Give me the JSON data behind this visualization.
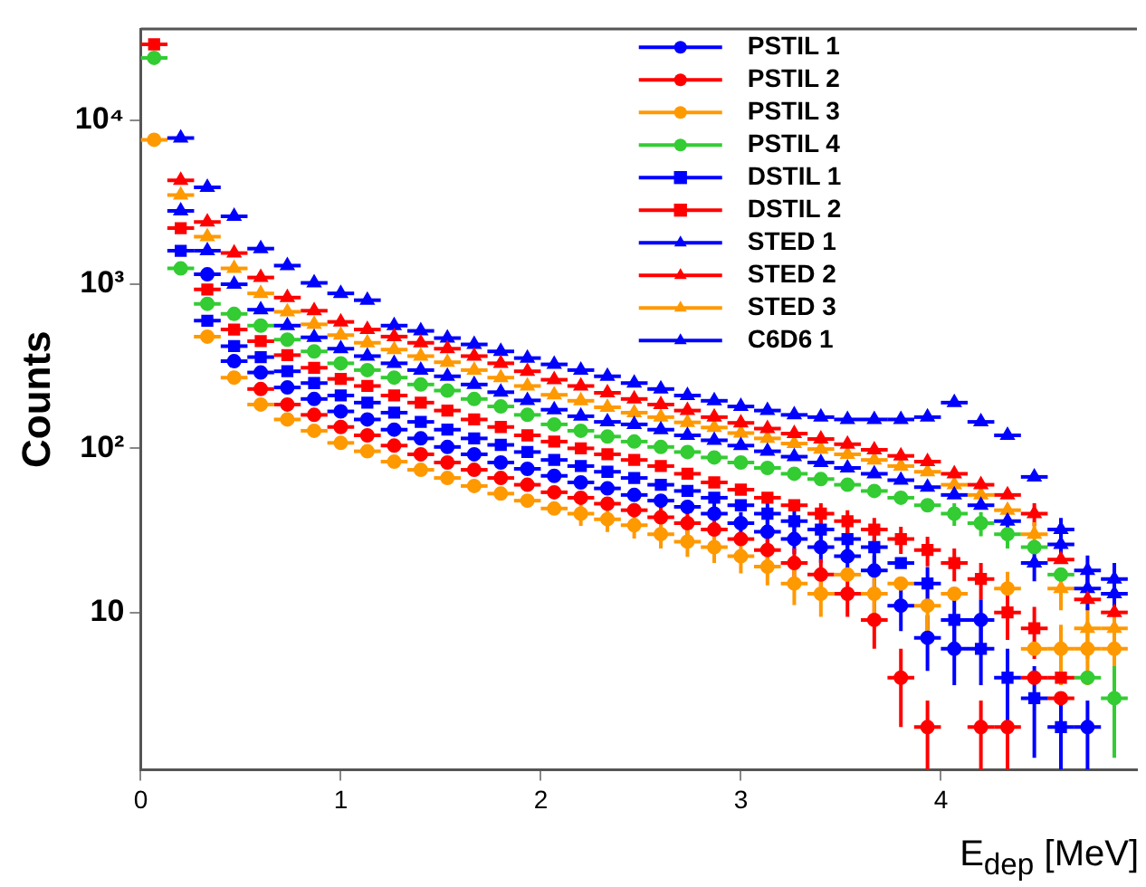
{
  "chart_data": {
    "type": "scatter",
    "xlabel": "E$_{dep}$ [MeV]",
    "ylabel": "Counts",
    "log": "y",
    "grid": false,
    "legend": "top right",
    "line_style": "solid",
    "xlim": [
      0,
      4.98
    ],
    "xticks": [
      0,
      1,
      2,
      3,
      4
    ],
    "ylim": [
      1.1,
      36000
    ],
    "yticks": [
      10,
      {
        "value": 100,
        "label": "10²"
      },
      {
        "value": 1000,
        "label": "10³"
      },
      {
        "value": 10000,
        "label": "10⁴"
      }
    ],
    "x": [
      0.067,
      0.2,
      0.333,
      0.467,
      0.6,
      0.733,
      0.867,
      1.0,
      1.133,
      1.267,
      1.4,
      1.533,
      1.667,
      1.8,
      1.933,
      2.067,
      2.2,
      2.333,
      2.467,
      2.6,
      2.733,
      2.867,
      3.0,
      3.133,
      3.267,
      3.4,
      3.533,
      3.667,
      3.8,
      3.933,
      4.067,
      4.2,
      4.333,
      4.467,
      4.6,
      4.733,
      4.867
    ],
    "series": [
      {
        "name": "PSTIL 1",
        "color": "#0000ff",
        "marker": "circle",
        "values": [
          null,
          null,
          1150,
          340,
          290,
          235,
          200,
          168,
          150,
          130,
          115,
          102,
          92,
          82,
          75,
          68,
          62,
          57,
          52,
          48,
          44,
          40,
          35,
          31,
          28,
          25,
          22,
          18,
          11,
          7,
          6,
          9,
          null,
          null,
          null,
          2,
          null
        ],
        "errors": [
          null,
          null,
          null,
          null,
          null,
          null,
          null,
          null,
          null,
          null,
          null,
          null,
          null,
          null,
          null,
          null,
          null,
          null,
          null,
          null,
          null,
          6.3,
          5.9,
          5.6,
          5.3,
          5,
          4.7,
          4.2,
          3.3,
          2.6,
          2.4,
          3,
          null,
          null,
          null,
          0.9,
          null
        ],
        "xerrors": [
          null,
          null,
          0.067,
          0.067,
          0.067,
          0.067,
          0.067,
          0.067,
          0.067,
          0.067,
          0.067,
          0.067,
          0.067,
          0.067,
          0.067,
          0.067,
          0.067,
          0.067,
          0.067,
          0.067,
          0.067,
          0.067,
          0.067,
          0.067,
          0.067,
          0.067,
          0.067,
          0.067,
          0.067,
          0.067,
          0.067,
          0.067,
          null,
          null,
          null,
          0.067,
          null
        ]
      },
      {
        "name": "PSTIL 2",
        "color": "#ff0000",
        "marker": "circle",
        "values": [
          null,
          null,
          null,
          null,
          230,
          185,
          160,
          135,
          120,
          104,
          92,
          82,
          74,
          66,
          60,
          54,
          50,
          46,
          42,
          38,
          35,
          32,
          28,
          24,
          20,
          17,
          13,
          9,
          4,
          2,
          null,
          2,
          2,
          4,
          3,
          null,
          null
        ],
        "errors": [
          null,
          null,
          null,
          null,
          null,
          null,
          null,
          null,
          null,
          null,
          null,
          null,
          null,
          null,
          null,
          null,
          null,
          null,
          null,
          6.2,
          5.9,
          5.7,
          null,
          4.9,
          4.5,
          4.1,
          3.6,
          3,
          2,
          0.9,
          null,
          0.9,
          0.9,
          null,
          null,
          null,
          null
        ],
        "xerrors": [
          null,
          null,
          null,
          null,
          0.067,
          0.067,
          0.067,
          0.067,
          0.067,
          0.067,
          0.067,
          0.067,
          0.067,
          0.067,
          0.067,
          0.067,
          0.067,
          0.067,
          0.067,
          0.067,
          0.067,
          0.067,
          0.067,
          0.067,
          0.067,
          0.067,
          0.067,
          0.067,
          0.067,
          0.067,
          null,
          0.067,
          0.067,
          0.067,
          0.067,
          null,
          null
        ]
      },
      {
        "name": "PSTIL 3",
        "color": "#ff9900",
        "marker": "circle",
        "values": [
          7600,
          null,
          480,
          270,
          185,
          150,
          128,
          108,
          96,
          83,
          74,
          66,
          59,
          53,
          48,
          43,
          40,
          37,
          34,
          30,
          27,
          25,
          22,
          19,
          15,
          13,
          17,
          13,
          15,
          11,
          13,
          null,
          14,
          6,
          6,
          6,
          6
        ],
        "errors": [
          null,
          null,
          null,
          null,
          null,
          null,
          null,
          null,
          null,
          null,
          null,
          null,
          null,
          null,
          null,
          null,
          6.3,
          6.1,
          5.8,
          5.5,
          5.2,
          5,
          4.7,
          4.4,
          3.9,
          3.6,
          null,
          3.6,
          null,
          3.3,
          null,
          null,
          3.7,
          null,
          2.4,
          2.4,
          2.4
        ],
        "xerrors": [
          0.067,
          null,
          0.067,
          0.067,
          0.067,
          0.067,
          0.067,
          0.067,
          0.067,
          0.067,
          0.067,
          0.067,
          0.067,
          0.067,
          0.067,
          0.067,
          0.067,
          0.067,
          0.067,
          0.067,
          0.067,
          0.067,
          0.067,
          0.067,
          0.067,
          0.067,
          0.067,
          0.067,
          0.067,
          0.067,
          0.067,
          null,
          0.067,
          0.067,
          0.067,
          0.067,
          0.067
        ]
      },
      {
        "name": "PSTIL 4",
        "color": "#33cc33",
        "marker": "circle",
        "values": [
          24000,
          1250,
          760,
          660,
          560,
          460,
          390,
          330,
          300,
          270,
          245,
          225,
          200,
          180,
          160,
          140,
          128,
          118,
          110,
          102,
          95,
          88,
          82,
          76,
          70,
          65,
          60,
          55,
          50,
          45,
          40,
          35,
          30,
          25,
          17,
          4,
          3
        ],
        "errors": [
          null,
          null,
          null,
          null,
          null,
          null,
          null,
          null,
          null,
          null,
          null,
          null,
          null,
          null,
          null,
          null,
          null,
          null,
          null,
          null,
          null,
          null,
          null,
          null,
          null,
          null,
          null,
          null,
          null,
          null,
          6.3,
          5.9,
          5.5,
          null,
          null,
          null,
          1.7
        ],
        "xerrors": [
          0.067,
          0.067,
          0.067,
          0.067,
          0.067,
          0.067,
          0.067,
          0.067,
          0.067,
          0.067,
          0.067,
          0.067,
          0.067,
          0.067,
          0.067,
          0.067,
          0.067,
          0.067,
          0.067,
          0.067,
          0.067,
          0.067,
          0.067,
          0.067,
          0.067,
          0.067,
          0.067,
          0.067,
          0.067,
          0.067,
          0.067,
          0.067,
          0.067,
          0.067,
          0.067,
          0.067,
          0.067
        ]
      },
      {
        "name": "DSTIL 1",
        "color": "#0000ff",
        "marker": "square",
        "values": [
          null,
          1600,
          600,
          420,
          360,
          295,
          250,
          210,
          190,
          165,
          145,
          130,
          115,
          105,
          95,
          85,
          78,
          72,
          66,
          60,
          55,
          50,
          45,
          40,
          36,
          32,
          28,
          25,
          20,
          15,
          9,
          6,
          4,
          3,
          2,
          null,
          null
        ],
        "errors": [
          null,
          null,
          null,
          null,
          null,
          null,
          null,
          null,
          null,
          null,
          null,
          null,
          null,
          null,
          null,
          null,
          null,
          null,
          null,
          null,
          null,
          null,
          null,
          6.3,
          6,
          5.7,
          5.3,
          5,
          null,
          3.9,
          3,
          2.4,
          2,
          1.7,
          0.9,
          null,
          null
        ],
        "xerrors": [
          null,
          0.067,
          0.067,
          0.067,
          0.067,
          0.067,
          0.067,
          0.067,
          0.067,
          0.067,
          0.067,
          0.067,
          0.067,
          0.067,
          0.067,
          0.067,
          0.067,
          0.067,
          0.067,
          0.067,
          0.067,
          0.067,
          0.067,
          0.067,
          0.067,
          0.067,
          0.067,
          0.067,
          0.067,
          0.067,
          0.067,
          0.067,
          0.067,
          0.067,
          0.067,
          null,
          null
        ]
      },
      {
        "name": "DSTIL 2",
        "color": "#ff0000",
        "marker": "square",
        "values": [
          29000,
          2200,
          930,
          530,
          450,
          370,
          310,
          265,
          240,
          210,
          190,
          170,
          150,
          135,
          120,
          110,
          100,
          92,
          85,
          78,
          70,
          62,
          56,
          50,
          45,
          40,
          36,
          32,
          28,
          24,
          20,
          16,
          10,
          8,
          4,
          null,
          null
        ],
        "errors": [
          null,
          null,
          null,
          null,
          null,
          null,
          null,
          null,
          null,
          null,
          null,
          null,
          null,
          null,
          null,
          null,
          null,
          null,
          null,
          null,
          null,
          null,
          null,
          null,
          null,
          6.3,
          6,
          5.7,
          5.3,
          4.9,
          4.5,
          4,
          3.2,
          2.8,
          null,
          null,
          null
        ],
        "xerrors": [
          0.067,
          0.067,
          0.067,
          0.067,
          0.067,
          0.067,
          0.067,
          0.067,
          0.067,
          0.067,
          0.067,
          0.067,
          0.067,
          0.067,
          0.067,
          0.067,
          0.067,
          0.067,
          0.067,
          0.067,
          0.067,
          0.067,
          0.067,
          0.067,
          0.067,
          0.067,
          0.067,
          0.067,
          0.067,
          0.067,
          0.067,
          0.067,
          0.067,
          0.067,
          0.067,
          null,
          null
        ]
      },
      {
        "name": "STED 1",
        "color": "#0000ff",
        "marker": "triangle",
        "values": [
          null,
          2800,
          1600,
          1000,
          700,
          560,
          475,
          405,
          365,
          330,
          300,
          275,
          245,
          220,
          196,
          172,
          157,
          145,
          140,
          130,
          120,
          112,
          104,
          96,
          89,
          82,
          76,
          70,
          64,
          58,
          52,
          45,
          36,
          20,
          26,
          18,
          13
        ],
        "errors": [
          null,
          null,
          null,
          null,
          null,
          null,
          null,
          null,
          null,
          null,
          null,
          null,
          null,
          null,
          null,
          null,
          null,
          null,
          null,
          null,
          null,
          null,
          null,
          null,
          null,
          null,
          null,
          null,
          null,
          null,
          null,
          null,
          6,
          4.5,
          5.1,
          4.2,
          3.6
        ],
        "xerrors": [
          null,
          0.067,
          0.067,
          0.067,
          0.067,
          0.067,
          0.067,
          0.067,
          0.067,
          0.067,
          0.067,
          0.067,
          0.067,
          0.067,
          0.067,
          0.067,
          0.067,
          0.067,
          0.067,
          0.067,
          0.067,
          0.067,
          0.067,
          0.067,
          0.067,
          0.067,
          0.067,
          0.067,
          0.067,
          0.067,
          0.067,
          0.067,
          0.067,
          0.067,
          0.067,
          0.067,
          0.067
        ]
      },
      {
        "name": "STED 2",
        "color": "#ff0000",
        "marker": "triangle",
        "values": [
          null,
          4300,
          2400,
          1550,
          1100,
          830,
          690,
          590,
          530,
          480,
          440,
          405,
          365,
          330,
          295,
          262,
          240,
          218,
          200,
          185,
          170,
          155,
          143,
          132,
          123,
          114,
          106,
          98,
          90,
          83,
          70,
          60,
          52,
          40,
          21,
          12,
          10
        ],
        "errors": [
          null,
          null,
          null,
          null,
          null,
          null,
          null,
          null,
          null,
          null,
          null,
          null,
          null,
          null,
          null,
          null,
          null,
          null,
          null,
          null,
          null,
          null,
          null,
          null,
          null,
          null,
          null,
          null,
          null,
          null,
          null,
          null,
          null,
          6.3,
          null,
          null,
          null
        ],
        "xerrors": [
          null,
          0.067,
          0.067,
          0.067,
          0.067,
          0.067,
          0.067,
          0.067,
          0.067,
          0.067,
          0.067,
          0.067,
          0.067,
          0.067,
          0.067,
          0.067,
          0.067,
          0.067,
          0.067,
          0.067,
          0.067,
          0.067,
          0.067,
          0.067,
          0.067,
          0.067,
          0.067,
          0.067,
          0.067,
          0.067,
          0.067,
          0.067,
          0.067,
          0.067,
          0.067,
          0.067,
          0.067
        ]
      },
      {
        "name": "STED 3",
        "color": "#ff9900",
        "marker": "triangle",
        "values": [
          null,
          3500,
          1950,
          1250,
          880,
          680,
          570,
          490,
          440,
          400,
          365,
          335,
          300,
          270,
          240,
          212,
          195,
          178,
          165,
          155,
          144,
          134,
          124,
          115,
          107,
          99,
          92,
          85,
          78,
          72,
          60,
          52,
          42,
          30,
          14,
          8,
          8
        ],
        "errors": [
          null,
          null,
          null,
          null,
          null,
          null,
          null,
          null,
          null,
          null,
          null,
          null,
          null,
          null,
          null,
          null,
          null,
          null,
          null,
          null,
          null,
          null,
          null,
          null,
          null,
          null,
          null,
          null,
          null,
          null,
          null,
          null,
          null,
          5.5,
          3.7,
          2.8,
          2.8
        ],
        "xerrors": [
          null,
          0.067,
          0.067,
          0.067,
          0.067,
          0.067,
          0.067,
          0.067,
          0.067,
          0.067,
          0.067,
          0.067,
          0.067,
          0.067,
          0.067,
          0.067,
          0.067,
          0.067,
          0.067,
          0.067,
          0.067,
          0.067,
          0.067,
          0.067,
          0.067,
          0.067,
          0.067,
          0.067,
          0.067,
          0.067,
          0.067,
          0.067,
          0.067,
          0.067,
          0.067,
          0.067,
          0.067
        ]
      },
      {
        "name": "C6D6 1",
        "color": "#0000ff",
        "marker": "triangle",
        "values": [
          null,
          7800,
          3900,
          2600,
          1650,
          1300,
          1020,
          880,
          800,
          560,
          520,
          470,
          430,
          390,
          355,
          325,
          300,
          275,
          250,
          230,
          210,
          195,
          180,
          170,
          160,
          155,
          150,
          150,
          150,
          155,
          190,
          145,
          120,
          67,
          32,
          14,
          16
        ],
        "errors": [
          null,
          null,
          null,
          null,
          null,
          null,
          null,
          null,
          null,
          null,
          null,
          null,
          null,
          null,
          null,
          null,
          null,
          null,
          null,
          null,
          null,
          null,
          null,
          null,
          null,
          null,
          null,
          null,
          null,
          null,
          null,
          null,
          null,
          null,
          5.7,
          3.7,
          4
        ],
        "xerrors": [
          null,
          0.067,
          0.067,
          0.067,
          0.067,
          0.067,
          0.067,
          0.067,
          0.067,
          0.067,
          0.067,
          0.067,
          0.067,
          0.067,
          0.067,
          0.067,
          0.067,
          0.067,
          0.067,
          0.067,
          0.067,
          0.067,
          0.067,
          0.067,
          0.067,
          0.067,
          0.067,
          0.067,
          0.067,
          0.067,
          0.067,
          0.067,
          0.067,
          0.067,
          0.067,
          0.067,
          0.067
        ]
      }
    ]
  }
}
